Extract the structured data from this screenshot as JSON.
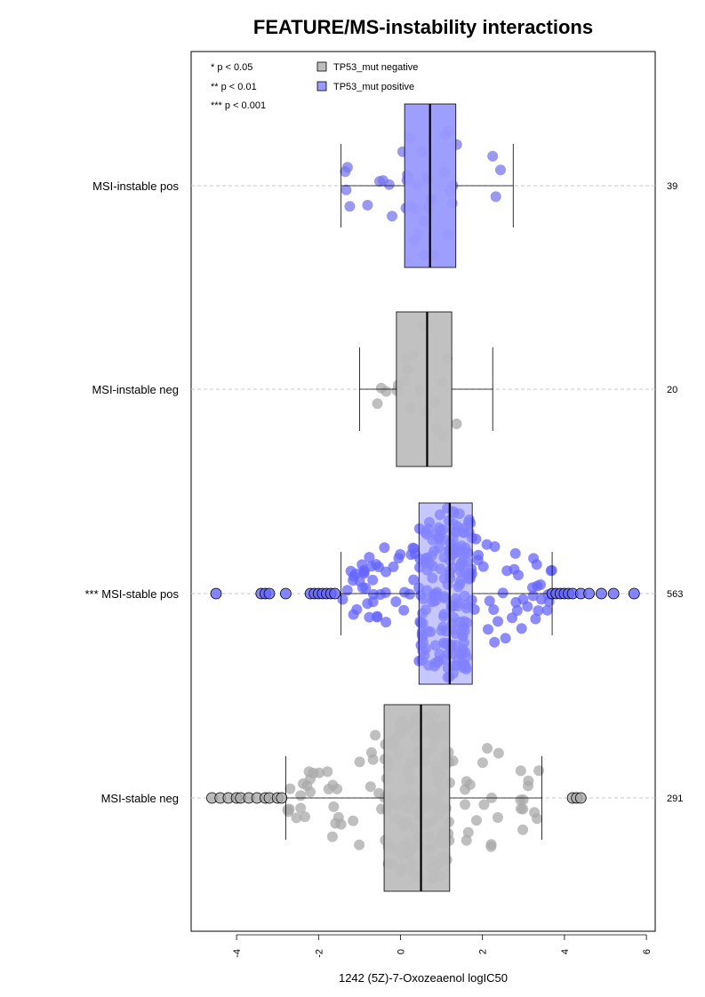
{
  "chart_data": {
    "type": "boxplot-beeswarm",
    "title": "FEATURE/MS-instability interactions",
    "xlabel": "1242 (5Z)-7-Oxozeaenol logIC50",
    "xlim": [
      -5.0,
      6.2
    ],
    "xticks": [
      "-4",
      "-2",
      "0",
      "2",
      "4",
      "6"
    ],
    "xtick_values": [
      -4,
      -2,
      0,
      2,
      4,
      6
    ],
    "significance_legend": [
      "* p < 0.05",
      "** p < 0.01",
      "*** p < 0.001"
    ],
    "legend": [
      {
        "label": "TP53_mut negative",
        "color": "#bebebe"
      },
      {
        "label": "TP53_mut positive",
        "color": "#9999ff"
      }
    ],
    "groups": [
      {
        "label": "MSI-instable pos",
        "n": "39",
        "tp53": "positive",
        "q1": 0.1,
        "median": 0.72,
        "q3": 1.35,
        "whisker_low": -1.45,
        "whisker_high": 2.75,
        "color": "#9999ff",
        "point_color": "#7777ee"
      },
      {
        "label": "MSI-instable neg",
        "n": "20",
        "tp53": "negative",
        "q1": -0.1,
        "median": 0.65,
        "q3": 1.25,
        "whisker_low": -1.0,
        "whisker_high": 2.25,
        "color": "#bebebe",
        "point_color": "#aaaaaa"
      },
      {
        "label": "*** MSI-stable pos",
        "n": "563",
        "tp53": "positive",
        "q1": 0.45,
        "median": 1.2,
        "q3": 1.75,
        "whisker_low": -1.45,
        "whisker_high": 3.7,
        "color": "#9999ff",
        "point_color": "#6666ff"
      },
      {
        "label": "MSI-stable neg",
        "n": "291",
        "tp53": "negative",
        "q1": -0.4,
        "median": 0.5,
        "q3": 1.2,
        "whisker_low": -2.8,
        "whisker_high": 3.45,
        "color": "#bebebe",
        "point_color": "#aaaaaa"
      }
    ],
    "outliers": [
      {
        "group": "*** MSI-stable pos",
        "values": [
          -4.5,
          -3.4,
          -3.3,
          -3.2,
          -2.8,
          -2.2,
          -2.1,
          -2.0,
          -1.9,
          -1.8,
          -1.7,
          -1.6,
          3.7,
          3.8,
          3.9,
          4.0,
          4.1,
          4.2,
          4.4,
          4.6,
          4.9,
          5.2,
          5.7
        ]
      },
      {
        "group": "MSI-stable neg",
        "values": [
          -4.6,
          -4.4,
          -4.2,
          -4.0,
          -3.9,
          -3.7,
          -3.5,
          -3.3,
          -3.2,
          -3.0,
          -2.9,
          4.2,
          4.3,
          4.4
        ]
      }
    ]
  }
}
